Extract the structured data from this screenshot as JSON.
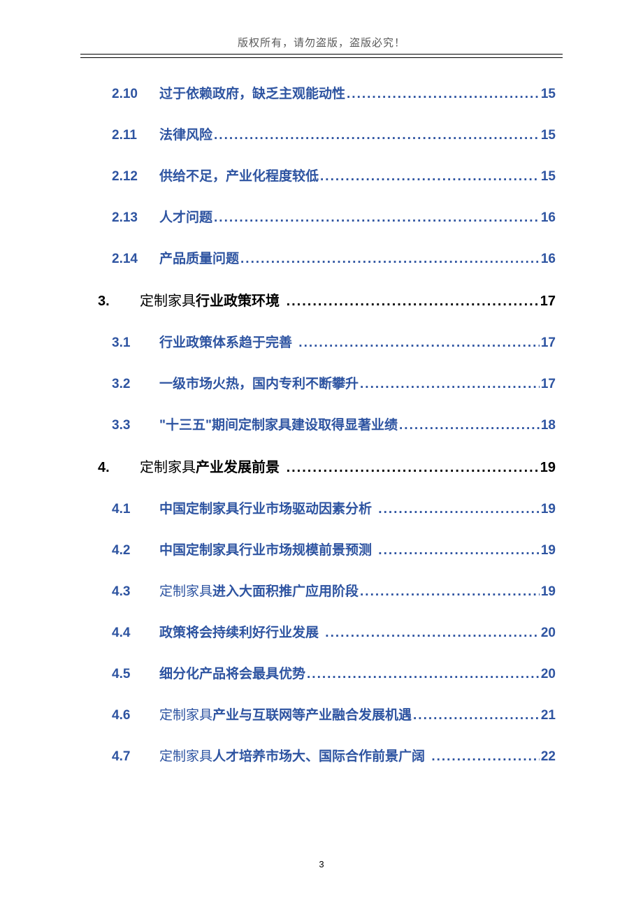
{
  "header": "版权所有，请勿盗版，盗版必究！",
  "page_number": "3",
  "link_color": "#2e54a1",
  "text_color": "#000000",
  "header_color": "#595959",
  "toc": [
    {
      "level": 2,
      "num": "2.10",
      "title": "过于依赖政府，缺乏主观能动性",
      "page": "15",
      "dots_space": false
    },
    {
      "level": 2,
      "num": "2.11",
      "title": "法律风险",
      "page": "15",
      "dots_space": false
    },
    {
      "level": 2,
      "num": "2.12",
      "title": "供给不足，产业化程度较低",
      "page": "15",
      "dots_space": false
    },
    {
      "level": 2,
      "num": "2.13",
      "title": "人才问题",
      "page": "16",
      "dots_space": false
    },
    {
      "level": 2,
      "num": "2.14",
      "title": "产品质量问题",
      "page": "16",
      "dots_space": false
    },
    {
      "level": 1,
      "num": "3.",
      "prefix": "定制家具",
      "title": "行业政策环境",
      "page": "17",
      "dots_space": true
    },
    {
      "level": 2,
      "num": "3.1",
      "title": "行业政策体系趋于完善",
      "page": "17",
      "dots_space": true
    },
    {
      "level": 2,
      "num": "3.2",
      "title": "一级市场火热，国内专利不断攀升",
      "page": "17",
      "dots_space": false
    },
    {
      "level": 2,
      "num": "3.3",
      "title": "\"十三五\"期间定制家具建设取得显著业绩",
      "page": "18",
      "dots_space": false
    },
    {
      "level": 1,
      "num": "4.",
      "prefix": "定制家具",
      "title": "产业发展前景",
      "page": "19",
      "dots_space": true
    },
    {
      "level": 2,
      "num": "4.1",
      "title": "中国定制家具行业市场驱动因素分析",
      "page": "19",
      "dots_space": true
    },
    {
      "level": 2,
      "num": "4.2",
      "title": "中国定制家具行业市场规模前景预测",
      "page": "19",
      "dots_space": true
    },
    {
      "level": 2,
      "num": "4.3",
      "prefix": "定制家具",
      "title": "进入大面积推广应用阶段",
      "page": "19",
      "dots_space": false
    },
    {
      "level": 2,
      "num": "4.4",
      "title": "政策将会持续利好行业发展",
      "page": "20",
      "dots_space": true
    },
    {
      "level": 2,
      "num": "4.5",
      "title": "细分化产品将会最具优势",
      "page": "20",
      "dots_space": false
    },
    {
      "level": 2,
      "num": "4.6",
      "prefix": "定制家具",
      "title": "产业与互联网等产业融合发展机遇",
      "page": "21",
      "dots_space": false
    },
    {
      "level": 2,
      "num": "4.7",
      "prefix": "定制家具",
      "title": "人才培养市场大、国际合作前景广阔",
      "page": "22",
      "dots_space": true
    }
  ]
}
